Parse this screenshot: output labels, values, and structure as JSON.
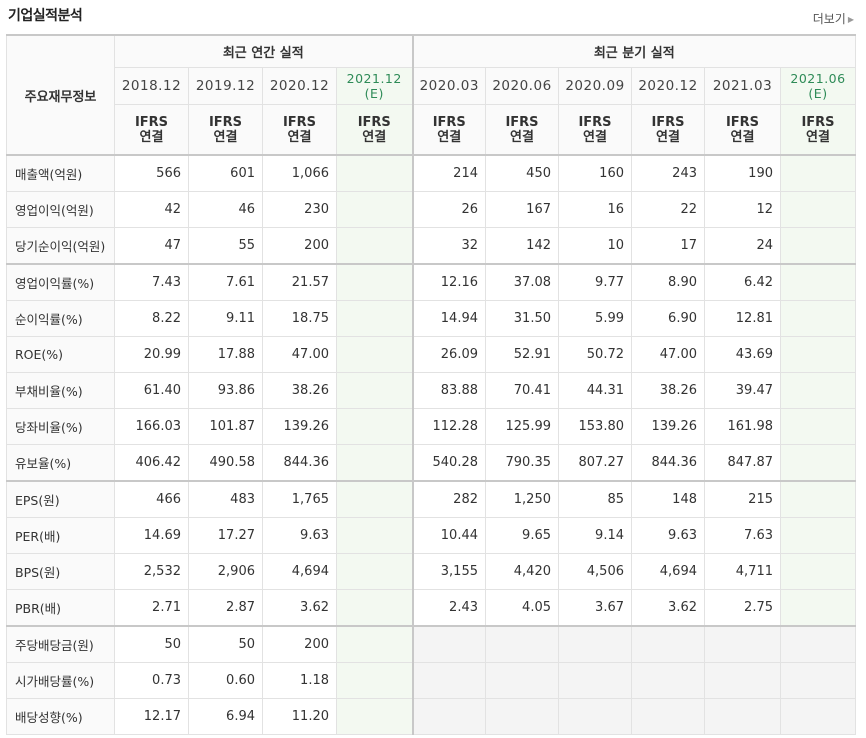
{
  "section_title": "기업실적분석",
  "more_label": "더보기",
  "more_arrow": "▶",
  "header": {
    "row_label": "주요재무정보",
    "annual_group": "최근 연간 실적",
    "quarter_group": "최근 분기 실적",
    "annual_periods": [
      "2018.12",
      "2019.12",
      "2020.12",
      "2021.12"
    ],
    "annual_est": "(E)",
    "quarter_periods": [
      "2020.03",
      "2020.06",
      "2020.09",
      "2020.12",
      "2021.03",
      "2021.06"
    ],
    "quarter_est": "(E)",
    "ifrs_line1": "IFRS",
    "ifrs_line2": "연결"
  },
  "rows": [
    {
      "label": "매출액(억원)",
      "annual": [
        "566",
        "601",
        "1,066",
        ""
      ],
      "quarter": [
        "214",
        "450",
        "160",
        "243",
        "190",
        ""
      ]
    },
    {
      "label": "영업이익(억원)",
      "annual": [
        "42",
        "46",
        "230",
        ""
      ],
      "quarter": [
        "26",
        "167",
        "16",
        "22",
        "12",
        ""
      ]
    },
    {
      "label": "당기순이익(억원)",
      "annual": [
        "47",
        "55",
        "200",
        ""
      ],
      "quarter": [
        "32",
        "142",
        "10",
        "17",
        "24",
        ""
      ]
    },
    {
      "label": "영업이익률(%)",
      "annual": [
        "7.43",
        "7.61",
        "21.57",
        ""
      ],
      "quarter": [
        "12.16",
        "37.08",
        "9.77",
        "8.90",
        "6.42",
        ""
      ]
    },
    {
      "label": "순이익률(%)",
      "annual": [
        "8.22",
        "9.11",
        "18.75",
        ""
      ],
      "quarter": [
        "14.94",
        "31.50",
        "5.99",
        "6.90",
        "12.81",
        ""
      ]
    },
    {
      "label": "ROE(%)",
      "annual": [
        "20.99",
        "17.88",
        "47.00",
        ""
      ],
      "quarter": [
        "26.09",
        "52.91",
        "50.72",
        "47.00",
        "43.69",
        ""
      ]
    },
    {
      "label": "부채비율(%)",
      "annual": [
        "61.40",
        "93.86",
        "38.26",
        ""
      ],
      "quarter": [
        "83.88",
        "70.41",
        "44.31",
        "38.26",
        "39.47",
        ""
      ]
    },
    {
      "label": "당좌비율(%)",
      "annual": [
        "166.03",
        "101.87",
        "139.26",
        ""
      ],
      "quarter": [
        "112.28",
        "125.99",
        "153.80",
        "139.26",
        "161.98",
        ""
      ]
    },
    {
      "label": "유보율(%)",
      "annual": [
        "406.42",
        "490.58",
        "844.36",
        ""
      ],
      "quarter": [
        "540.28",
        "790.35",
        "807.27",
        "844.36",
        "847.87",
        ""
      ]
    },
    {
      "label": "EPS(원)",
      "annual": [
        "466",
        "483",
        "1,765",
        ""
      ],
      "quarter": [
        "282",
        "1,250",
        "85",
        "148",
        "215",
        ""
      ]
    },
    {
      "label": "PER(배)",
      "annual": [
        "14.69",
        "17.27",
        "9.63",
        ""
      ],
      "quarter": [
        "10.44",
        "9.65",
        "9.14",
        "9.63",
        "7.63",
        ""
      ]
    },
    {
      "label": "BPS(원)",
      "annual": [
        "2,532",
        "2,906",
        "4,694",
        ""
      ],
      "quarter": [
        "3,155",
        "4,420",
        "4,506",
        "4,694",
        "4,711",
        ""
      ]
    },
    {
      "label": "PBR(배)",
      "annual": [
        "2.71",
        "2.87",
        "3.62",
        ""
      ],
      "quarter": [
        "2.43",
        "4.05",
        "3.67",
        "3.62",
        "2.75",
        ""
      ]
    },
    {
      "label": "주당배당금(원)",
      "annual": [
        "50",
        "50",
        "200",
        ""
      ],
      "quarter": [
        "",
        "",
        "",
        "",
        "",
        ""
      ]
    },
    {
      "label": "시가배당률(%)",
      "annual": [
        "0.73",
        "0.60",
        "1.18",
        ""
      ],
      "quarter": [
        "",
        "",
        "",
        "",
        "",
        ""
      ]
    },
    {
      "label": "배당성향(%)",
      "annual": [
        "12.17",
        "6.94",
        "11.20",
        ""
      ],
      "quarter": [
        "",
        "",
        "",
        "",
        "",
        ""
      ]
    }
  ],
  "colors": {
    "ifrs_text": "#e8590c",
    "estimate_text": "#2e8b57",
    "estimate_bg": "#f3f9f1",
    "divider": "#c8c8c8"
  }
}
